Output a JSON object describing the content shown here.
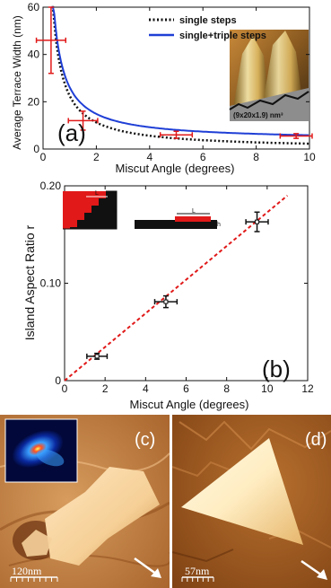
{
  "chart_data": [
    {
      "type": "line",
      "panel_label": "(a)",
      "xlabel": "Miscut Angle (degrees)",
      "ylabel": "Average Terrace Width (nm)",
      "xlim": [
        0,
        10
      ],
      "ylim": [
        0,
        60
      ],
      "x_ticks": [
        "0",
        "2",
        "4",
        "6",
        "8",
        "10"
      ],
      "y_ticks": [
        "0",
        "20",
        "40",
        "60"
      ],
      "legend": {
        "position": "top-right",
        "entries": [
          "single steps",
          "single+triple steps"
        ]
      },
      "series": [
        {
          "name": "single steps",
          "style": "dotted",
          "color": "#111111",
          "k": 22.5,
          "offset": 0
        },
        {
          "name": "single+triple steps",
          "style": "solid",
          "color": "#1f3fd6",
          "k": 22.5,
          "offset": 3.6
        }
      ],
      "points": [
        {
          "x": 0.3,
          "y": 46,
          "xerr": 0.55,
          "yerr": 14
        },
        {
          "x": 1.5,
          "y": 12,
          "xerr": 0.55,
          "yerr": 4
        },
        {
          "x": 5.0,
          "y": 6,
          "xerr": 0.6,
          "yerr": 1.5
        },
        {
          "x": 9.5,
          "y": 5.5,
          "xerr": 0.6,
          "yerr": 1
        }
      ],
      "point_color": "#e11919",
      "inset_label": "(9x20x1.9) nm³"
    },
    {
      "type": "scatter",
      "panel_label": "(b)",
      "xlabel": "Miscut Angle (degrees)",
      "ylabel": "Island Aspect Ratio r",
      "xlim": [
        0,
        12
      ],
      "ylim": [
        0,
        0.2
      ],
      "x_ticks": [
        "0",
        "2",
        "4",
        "6",
        "8",
        "10",
        "12"
      ],
      "y_ticks": [
        "0",
        "0.10",
        "0.20"
      ],
      "points": [
        {
          "x": 1.6,
          "y": 0.025,
          "xerr": 0.5,
          "yerr": 0.003
        },
        {
          "x": 5.0,
          "y": 0.081,
          "xerr": 0.55,
          "yerr": 0.006
        },
        {
          "x": 9.5,
          "y": 0.163,
          "xerr": 0.55,
          "yerr": 0.01
        }
      ],
      "fit": {
        "x": [
          0,
          11
        ],
        "y": [
          0,
          0.19
        ],
        "color": "#e11919"
      },
      "inset_label_L": "L",
      "inset_label_h": "h"
    }
  ],
  "panels": {
    "c": {
      "label": "(c)",
      "scale": "120nm"
    },
    "d": {
      "label": "(d)",
      "scale": "57nm"
    }
  }
}
